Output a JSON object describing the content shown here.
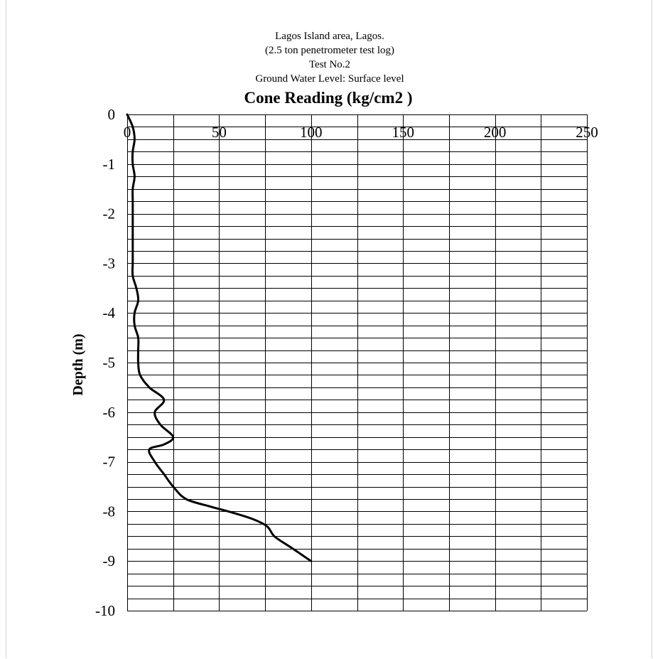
{
  "chart_data": {
    "type": "line",
    "title_lines": [
      "Lagos Island area, Lagos.",
      "(2.5 ton penetrometer test log)",
      "Test No.2",
      "Ground Water Level: Surface level"
    ],
    "xlabel": "Cone Reading (kg/cm2 )",
    "ylabel": "Depth (m)",
    "xlim": [
      0,
      250
    ],
    "ylim": [
      -10,
      0
    ],
    "x_ticks": [
      "0",
      "50",
      "100",
      "150",
      "200",
      "250"
    ],
    "y_ticks": [
      "0",
      "-1",
      "-2",
      "-3",
      "-4",
      "-5",
      "-6",
      "-7",
      "-8",
      "-9",
      "-10"
    ],
    "x_axis_position": "top",
    "grid": true,
    "series": [
      {
        "points": [
          [
            0,
            0
          ],
          [
            3,
            -0.25
          ],
          [
            4,
            -0.5
          ],
          [
            3,
            -0.75
          ],
          [
            3,
            -1
          ],
          [
            4,
            -1.25
          ],
          [
            3,
            -1.5
          ],
          [
            3,
            -1.75
          ],
          [
            3,
            -2
          ],
          [
            3,
            -2.25
          ],
          [
            3,
            -2.5
          ],
          [
            3,
            -2.75
          ],
          [
            3,
            -3
          ],
          [
            3,
            -3.25
          ],
          [
            5,
            -3.5
          ],
          [
            6,
            -3.75
          ],
          [
            4,
            -4
          ],
          [
            4,
            -4.25
          ],
          [
            6,
            -4.5
          ],
          [
            6,
            -4.75
          ],
          [
            6,
            -5
          ],
          [
            7,
            -5.25
          ],
          [
            12,
            -5.5
          ],
          [
            20,
            -5.75
          ],
          [
            15,
            -6
          ],
          [
            18,
            -6.25
          ],
          [
            25,
            -6.5
          ],
          [
            20,
            -6.65
          ],
          [
            12,
            -6.75
          ],
          [
            15,
            -7
          ],
          [
            20,
            -7.25
          ],
          [
            25,
            -7.5
          ],
          [
            32,
            -7.75
          ],
          [
            45,
            -7.9
          ],
          [
            55,
            -8
          ],
          [
            68,
            -8.15
          ],
          [
            76,
            -8.3
          ],
          [
            80,
            -8.5
          ],
          [
            88,
            -8.7
          ],
          [
            94,
            -8.85
          ],
          [
            100,
            -9
          ]
        ]
      }
    ]
  }
}
